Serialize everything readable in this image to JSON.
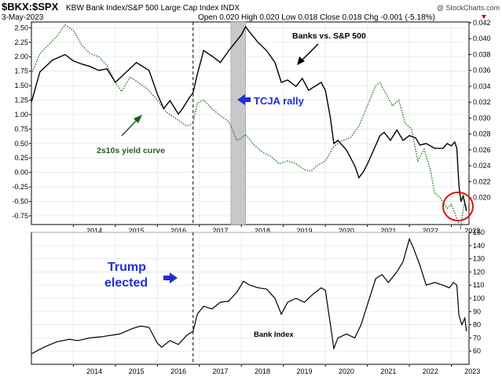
{
  "header": {
    "symbol": "$BKX:$SPX",
    "description": "KBW Bank Index/S&P 500 Large Cap Index INDX",
    "date": "3-May-2023",
    "ohlc": "Open 0.020  High 0.020  Low 0.018  Close 0.018  Chg -0.001 (-5.18%)",
    "watermark": "@ StockCharts.com",
    "chg_arrow_color": "#cc0000"
  },
  "chart_data": [
    {
      "type": "line",
      "panel": "top",
      "x_ticks": [
        "2014",
        "2015",
        "2016",
        "2017",
        "2018",
        "2019",
        "2020",
        "2021",
        "2022",
        "2023"
      ],
      "left_axis": {
        "ticks": [
          "2.50",
          "2.25",
          "2.00",
          "1.75",
          "1.50",
          "1.25",
          "1.00",
          "0.75",
          "0.50",
          "0.25",
          "0.00",
          "-0.25",
          "-0.50",
          "-0.75"
        ],
        "ylim": [
          -0.9,
          2.6
        ]
      },
      "right_axis": {
        "ticks": [
          "0.042",
          "0.040",
          "0.038",
          "0.036",
          "0.034",
          "0.032",
          "0.030",
          "0.028",
          "0.026",
          "0.024",
          "0.022",
          "0.020"
        ],
        "ylim": [
          0.0166,
          0.0421
        ]
      },
      "series": [
        {
          "axis": "right",
          "color": "#000000",
          "style": "solid",
          "points": [
            [
              2013.0,
              0.032
            ],
            [
              2013.2,
              0.0358
            ],
            [
              2013.5,
              0.0373
            ],
            [
              2013.8,
              0.038
            ],
            [
              2014.0,
              0.0372
            ],
            [
              2014.2,
              0.0368
            ],
            [
              2014.4,
              0.0365
            ],
            [
              2014.6,
              0.036
            ],
            [
              2014.8,
              0.0362
            ],
            [
              2015.0,
              0.0345
            ],
            [
              2015.2,
              0.0355
            ],
            [
              2015.5,
              0.037
            ],
            [
              2015.8,
              0.036
            ],
            [
              2016.0,
              0.033
            ],
            [
              2016.15,
              0.0312
            ],
            [
              2016.3,
              0.0322
            ],
            [
              2016.5,
              0.0305
            ],
            [
              2016.6,
              0.0312
            ],
            [
              2016.75,
              0.0325
            ],
            [
              2016.85,
              0.0332
            ],
            [
              2016.95,
              0.0355
            ],
            [
              2017.1,
              0.0385
            ],
            [
              2017.3,
              0.0378
            ],
            [
              2017.5,
              0.037
            ],
            [
              2017.7,
              0.0385
            ],
            [
              2017.85,
              0.0395
            ],
            [
              2018.0,
              0.0405
            ],
            [
              2018.1,
              0.0415
            ],
            [
              2018.2,
              0.0408
            ],
            [
              2018.4,
              0.0395
            ],
            [
              2018.6,
              0.0385
            ],
            [
              2018.8,
              0.037
            ],
            [
              2018.95,
              0.0345
            ],
            [
              2019.1,
              0.0348
            ],
            [
              2019.3,
              0.034
            ],
            [
              2019.45,
              0.035
            ],
            [
              2019.6,
              0.0335
            ],
            [
              2019.75,
              0.034
            ],
            [
              2019.9,
              0.0345
            ],
            [
              2020.0,
              0.0335
            ],
            [
              2020.12,
              0.03
            ],
            [
              2020.2,
              0.0268
            ],
            [
              2020.3,
              0.0272
            ],
            [
              2020.5,
              0.026
            ],
            [
              2020.7,
              0.024
            ],
            [
              2020.8,
              0.0225
            ],
            [
              2020.9,
              0.0232
            ],
            [
              2021.0,
              0.0242
            ],
            [
              2021.15,
              0.026
            ],
            [
              2021.3,
              0.0278
            ],
            [
              2021.4,
              0.0282
            ],
            [
              2021.55,
              0.0272
            ],
            [
              2021.7,
              0.0285
            ],
            [
              2021.85,
              0.0272
            ],
            [
              2022.0,
              0.0278
            ],
            [
              2022.15,
              0.0275
            ],
            [
              2022.25,
              0.0266
            ],
            [
              2022.4,
              0.0268
            ],
            [
              2022.6,
              0.0262
            ],
            [
              2022.8,
              0.0262
            ],
            [
              2022.9,
              0.0268
            ],
            [
              2023.0,
              0.0265
            ],
            [
              2023.08,
              0.027
            ],
            [
              2023.13,
              0.0262
            ],
            [
              2023.18,
              0.0215
            ],
            [
              2023.23,
              0.0195
            ],
            [
              2023.28,
              0.0202
            ],
            [
              2023.32,
              0.0193
            ],
            [
              2023.36,
              0.0183
            ]
          ]
        },
        {
          "axis": "left",
          "color": "#2e7d2e",
          "style": "dotted",
          "points": [
            [
              2013.0,
              1.7
            ],
            [
              2013.2,
              2.05
            ],
            [
              2013.4,
              2.2
            ],
            [
              2013.6,
              2.35
            ],
            [
              2013.8,
              2.55
            ],
            [
              2014.0,
              2.45
            ],
            [
              2014.2,
              2.2
            ],
            [
              2014.4,
              2.05
            ],
            [
              2014.6,
              2.0
            ],
            [
              2014.8,
              1.85
            ],
            [
              2015.0,
              1.55
            ],
            [
              2015.15,
              1.4
            ],
            [
              2015.35,
              1.65
            ],
            [
              2015.55,
              1.55
            ],
            [
              2015.75,
              1.45
            ],
            [
              2016.0,
              1.25
            ],
            [
              2016.2,
              1.05
            ],
            [
              2016.4,
              0.95
            ],
            [
              2016.6,
              0.85
            ],
            [
              2016.7,
              0.8
            ],
            [
              2016.85,
              0.85
            ],
            [
              2016.95,
              1.2
            ],
            [
              2017.1,
              1.25
            ],
            [
              2017.3,
              1.1
            ],
            [
              2017.5,
              0.98
            ],
            [
              2017.7,
              0.88
            ],
            [
              2017.9,
              0.55
            ],
            [
              2018.1,
              0.65
            ],
            [
              2018.3,
              0.48
            ],
            [
              2018.5,
              0.35
            ],
            [
              2018.7,
              0.28
            ],
            [
              2018.9,
              0.15
            ],
            [
              2019.1,
              0.2
            ],
            [
              2019.3,
              0.15
            ],
            [
              2019.5,
              0.05
            ],
            [
              2019.65,
              0.02
            ],
            [
              2019.8,
              0.12
            ],
            [
              2020.0,
              0.2
            ],
            [
              2020.2,
              0.45
            ],
            [
              2020.4,
              0.55
            ],
            [
              2020.6,
              0.6
            ],
            [
              2020.8,
              0.8
            ],
            [
              2021.0,
              1.15
            ],
            [
              2021.2,
              1.5
            ],
            [
              2021.3,
              1.55
            ],
            [
              2021.45,
              1.35
            ],
            [
              2021.6,
              1.15
            ],
            [
              2021.75,
              1.25
            ],
            [
              2021.9,
              0.85
            ],
            [
              2022.05,
              0.75
            ],
            [
              2022.2,
              0.2
            ],
            [
              2022.35,
              0.4
            ],
            [
              2022.5,
              0.05
            ],
            [
              2022.6,
              -0.35
            ],
            [
              2022.75,
              -0.45
            ],
            [
              2022.9,
              -0.62
            ],
            [
              2023.0,
              -0.55
            ],
            [
              2023.12,
              -0.78
            ],
            [
              2023.22,
              -0.95
            ],
            [
              2023.3,
              -0.55
            ],
            [
              2023.36,
              -0.6
            ]
          ]
        }
      ],
      "annotations": {
        "banks_vs_spx": "Banks vs. S&P 500",
        "tcja_rally": "TCJA rally",
        "yield_curve": "2s10s yield curve"
      },
      "shaded_region": [
        2017.75,
        2018.1
      ],
      "vline_x": 2016.85
    },
    {
      "type": "line",
      "panel": "bottom",
      "x_ticks": [
        "2014",
        "2015",
        "2016",
        "2017",
        "2018",
        "2019",
        "2020",
        "2021",
        "2022",
        "2023"
      ],
      "right_axis": {
        "ticks": [
          "150",
          "140",
          "130",
          "120",
          "110",
          "100",
          "90",
          "80",
          "70",
          "60"
        ],
        "ylim": [
          50,
          150
        ]
      },
      "series": [
        {
          "axis": "right",
          "color": "#000000",
          "style": "solid",
          "points": [
            [
              2013.0,
              58
            ],
            [
              2013.3,
              63
            ],
            [
              2013.6,
              67
            ],
            [
              2013.9,
              69
            ],
            [
              2014.1,
              68
            ],
            [
              2014.4,
              70
            ],
            [
              2014.7,
              71
            ],
            [
              2014.9,
              72
            ],
            [
              2015.1,
              73
            ],
            [
              2015.4,
              77
            ],
            [
              2015.6,
              79
            ],
            [
              2015.8,
              78
            ],
            [
              2016.0,
              66
            ],
            [
              2016.1,
              63
            ],
            [
              2016.3,
              68
            ],
            [
              2016.5,
              65
            ],
            [
              2016.7,
              72
            ],
            [
              2016.85,
              75
            ],
            [
              2016.95,
              88
            ],
            [
              2017.1,
              94
            ],
            [
              2017.3,
              92
            ],
            [
              2017.5,
              97
            ],
            [
              2017.7,
              98
            ],
            [
              2017.9,
              105
            ],
            [
              2018.05,
              113
            ],
            [
              2018.2,
              110
            ],
            [
              2018.4,
              108
            ],
            [
              2018.6,
              107
            ],
            [
              2018.8,
              100
            ],
            [
              2018.95,
              88
            ],
            [
              2019.1,
              97
            ],
            [
              2019.3,
              100
            ],
            [
              2019.5,
              97
            ],
            [
              2019.7,
              103
            ],
            [
              2019.9,
              108
            ],
            [
              2020.0,
              106
            ],
            [
              2020.12,
              80
            ],
            [
              2020.2,
              62
            ],
            [
              2020.3,
              70
            ],
            [
              2020.5,
              73
            ],
            [
              2020.7,
              70
            ],
            [
              2020.85,
              80
            ],
            [
              2021.0,
              95
            ],
            [
              2021.2,
              115
            ],
            [
              2021.35,
              118
            ],
            [
              2021.5,
              112
            ],
            [
              2021.7,
              120
            ],
            [
              2021.85,
              128
            ],
            [
              2022.0,
              145
            ],
            [
              2022.1,
              138
            ],
            [
              2022.25,
              125
            ],
            [
              2022.4,
              110
            ],
            [
              2022.6,
              112
            ],
            [
              2022.8,
              110
            ],
            [
              2022.95,
              108
            ],
            [
              2023.05,
              112
            ],
            [
              2023.13,
              110
            ],
            [
              2023.18,
              87
            ],
            [
              2023.25,
              80
            ],
            [
              2023.32,
              85
            ],
            [
              2023.36,
              75
            ]
          ]
        }
      ],
      "annotations": {
        "trump_line1": "Trump",
        "trump_line2": "elected",
        "bank_index": "Bank Index"
      },
      "vline_x": 2016.85
    }
  ]
}
